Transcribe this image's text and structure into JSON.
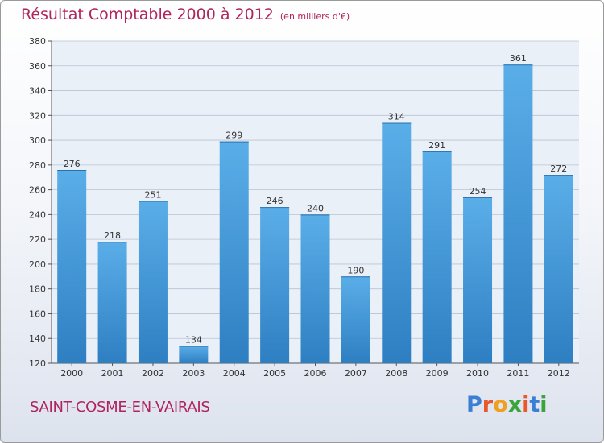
{
  "chart_data": {
    "type": "bar",
    "title": "Résultat Comptable 2000 à 2012",
    "subtitle": "(en milliers d'€)",
    "categories": [
      "2000",
      "2001",
      "2002",
      "2003",
      "2004",
      "2005",
      "2006",
      "2007",
      "2008",
      "2009",
      "2010",
      "2011",
      "2012"
    ],
    "values": [
      276,
      218,
      251,
      134,
      299,
      246,
      240,
      190,
      314,
      291,
      254,
      361,
      272
    ],
    "ylim": [
      120,
      380
    ],
    "yticks": [
      120,
      140,
      160,
      180,
      200,
      220,
      240,
      260,
      280,
      300,
      320,
      340,
      360,
      380
    ],
    "xlabel": "",
    "ylabel": "",
    "grid": true,
    "bar_color": "#3a8fd6"
  },
  "location": "SAINT-COSME-EN-VAIRAIS",
  "brand": {
    "text": "Proxiti",
    "letter_colors": [
      "#3b7fd4",
      "#e8582a",
      "#f0a020",
      "#3aa43a",
      "#e8582a",
      "#3b7fd4",
      "#3aa43a"
    ]
  },
  "colors": {
    "accent": "#b0245d"
  }
}
